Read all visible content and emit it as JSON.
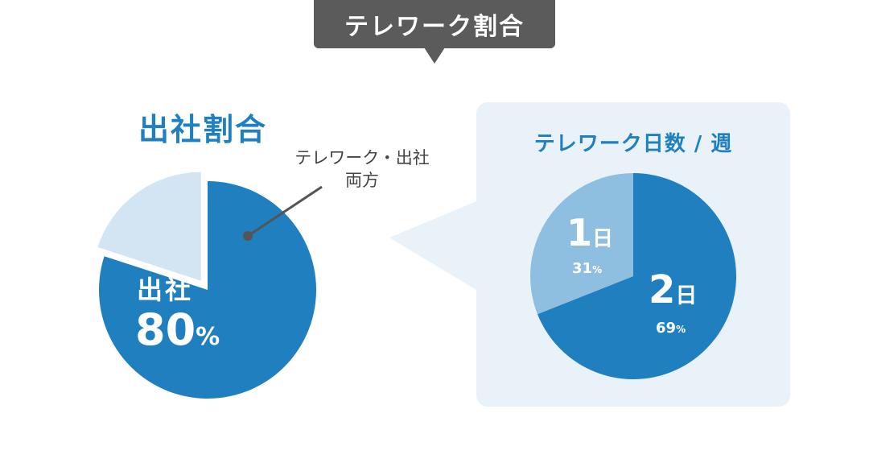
{
  "header": {
    "title": "テレワーク割合"
  },
  "chart_data": [
    {
      "type": "pie",
      "title": "出社割合",
      "slices": [
        {
          "label": "出社",
          "value": 80,
          "value_label": "80",
          "unit": "%",
          "color": "#1f7fbf"
        },
        {
          "label": "テレワーク・出社",
          "label_line2": "両方",
          "value": 20,
          "color": "#d3e5f2",
          "exploded": true
        }
      ]
    },
    {
      "type": "pie",
      "title": "テレワーク日数 / 週",
      "slices": [
        {
          "label": "1",
          "label_unit": "日",
          "value": 31,
          "value_label": "31",
          "unit": "%",
          "color": "#8fbfe0"
        },
        {
          "label": "2",
          "label_unit": "日",
          "value": 69,
          "value_label": "69",
          "unit": "%",
          "color": "#1f7fbf"
        }
      ]
    }
  ],
  "colors": {
    "primary": "#1f7fbf",
    "light": "#d3e5f2",
    "mid": "#8fbfe0",
    "panel": "#eaf2f9",
    "badge": "#5b5b5b",
    "connector": "#555555"
  }
}
